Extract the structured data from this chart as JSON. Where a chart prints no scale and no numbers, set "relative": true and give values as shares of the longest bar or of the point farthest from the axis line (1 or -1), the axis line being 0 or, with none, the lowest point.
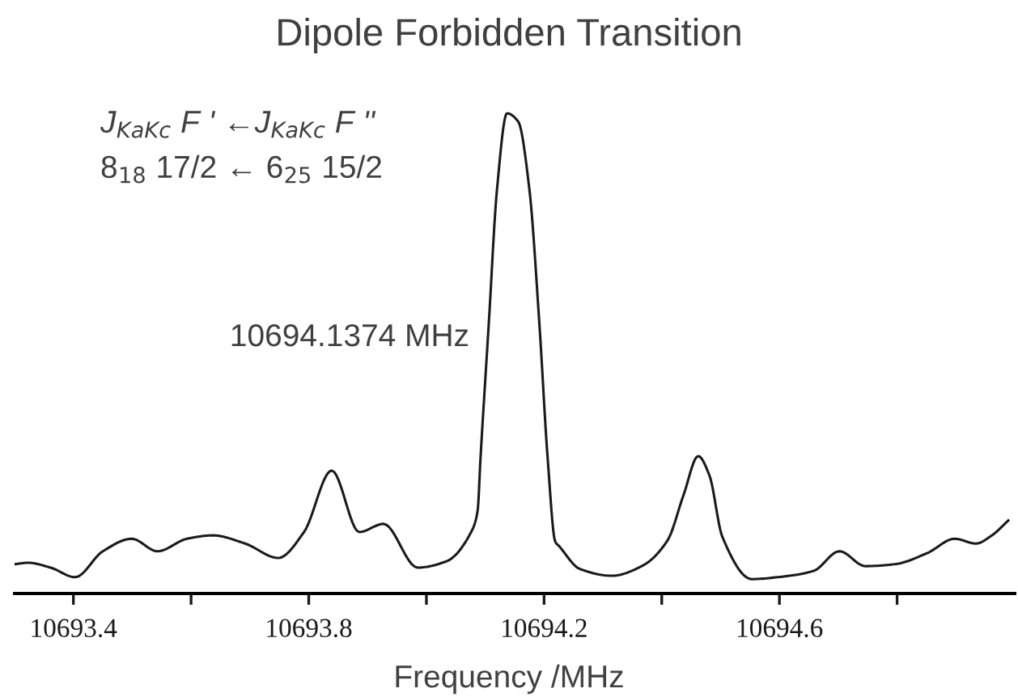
{
  "chart_data": {
    "type": "line",
    "title": "Dipole Forbidden Transition",
    "xlabel": "Frequency /MHz",
    "relative": true,
    "annotations": [
      "J$_{KaKc}$ F ' ←J$_{KaKc}$ F ''",
      "8$_{18}$ 17/2 ← 6$_{25}$ 15/2",
      "10694.1374 MHz"
    ],
    "xlim": [
      10693.3,
      10695.0
    ],
    "xticks": [
      10693.4,
      {
        "value": 10693.6,
        "label": null
      },
      10693.8,
      {
        "value": 10694.0,
        "label": null
      },
      10694.2,
      {
        "value": 10694.4,
        "label": null
      },
      10694.6,
      {
        "value": 10694.8,
        "label": null
      }
    ],
    "tick_labels": "x",
    "grid": false,
    "legend": false,
    "marker": "none",
    "line_style": "solid",
    "series": [
      {
        "color": "#1a1a1a",
        "x": [
          10693.3,
          10693.323,
          10693.361,
          10693.403,
          10693.45,
          10693.499,
          10693.543,
          10693.593,
          10693.637,
          10693.692,
          10693.748,
          10693.792,
          10693.839,
          10693.886,
          10693.927,
          10693.985,
          10694.034,
          10694.076,
          10694.087,
          10694.092,
          10694.106,
          10694.12,
          10694.137,
          10694.156,
          10694.175,
          10694.192,
          10694.206,
          10694.219,
          10694.226,
          10694.261,
          10694.316,
          10694.366,
          10694.41,
          10694.437,
          10694.462,
          10694.481,
          10694.503,
          10694.553,
          10694.597,
          10694.658,
          10694.702,
          10694.746,
          10694.796,
          10694.851,
          10694.898,
          10694.934,
          10694.961,
          10694.989
        ],
        "values": [
          0.061,
          0.064,
          0.054,
          0.034,
          0.088,
          0.114,
          0.088,
          0.114,
          0.121,
          0.104,
          0.074,
          0.128,
          0.256,
          0.128,
          0.145,
          0.054,
          0.067,
          0.128,
          0.172,
          0.283,
          0.562,
          0.842,
          1,
          0.983,
          0.842,
          0.562,
          0.283,
          0.108,
          0.098,
          0.051,
          0.037,
          0.057,
          0.111,
          0.205,
          0.286,
          0.246,
          0.118,
          0.03,
          0.034,
          0.047,
          0.088,
          0.057,
          0.061,
          0.084,
          0.114,
          0.104,
          0.121,
          0.152
        ]
      }
    ]
  }
}
